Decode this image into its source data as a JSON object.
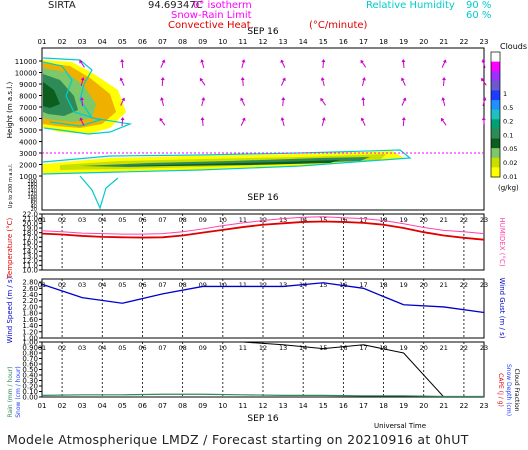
{
  "header": {
    "station": "SIRTA",
    "coords": "94.69347C",
    "legend_iso": "0° isotherm",
    "legend_snow": "Snow-Rain Limit",
    "legend_conv": "Convective Heat.",
    "legend_conv_unit": "(°C/minute)",
    "rh_label": "Relative Humidity",
    "rh_values": [
      "90 %",
      "60 %"
    ]
  },
  "x_ticks": [
    "01",
    "02",
    "03",
    "04",
    "05",
    "06",
    "07",
    "08",
    "09",
    "10",
    "11",
    "12",
    "13",
    "14",
    "15",
    "16",
    "17",
    "18",
    "19",
    "20",
    "21",
    "22",
    "23"
  ],
  "date_label": "SEP 16",
  "xlabel": "Universal Time",
  "footer": "Modele Atmospherique LMDZ / Forecast starting on 20210916 at 0hUT",
  "colors": {
    "temperature": "#e00000",
    "humidex": "#ff44aa",
    "wind": "#0000cc",
    "precip": "#000000",
    "isotherm": "#ff00ff",
    "cloud_light": "#ffff00",
    "cloud_dark": "#005500",
    "rh": "#00cccc"
  },
  "chart_data": [
    {
      "type": "heatmap",
      "ylabel": "Height (m a.s.l.)",
      "sub_ylabel": "Up to 200 m a.s.l.",
      "yticks_upper": [
        "11000",
        "10000",
        "9000",
        "8000",
        "7000",
        "6000",
        "5000",
        "4000",
        "3000",
        "2000",
        "1000"
      ],
      "yticks_lower": [
        "200",
        "180",
        "160",
        "140",
        "120",
        "100",
        "80",
        "60",
        "40",
        "20"
      ],
      "colorbar_title": "Clouds",
      "colorbar_ticks": [
        "1",
        "0.5",
        "0.2",
        "0.1",
        "0.05",
        "0.02",
        "0.01"
      ],
      "colorbar_unit": "(g/kg)",
      "isotherm_height": 3000
    },
    {
      "type": "line",
      "ylabel": "Temperature (°C)",
      "ylabel2": "HUMIDEX (°C)",
      "yticks": [
        "22.0",
        "21.0",
        "20.0",
        "19.0",
        "18.0",
        "17.0",
        "16.0",
        "15.0",
        "14.0",
        "13.0",
        "12.0",
        "11.0",
        "10.0"
      ],
      "ylim": [
        10,
        22
      ],
      "x": [
        1,
        2,
        3,
        4,
        5,
        6,
        7,
        8,
        9,
        10,
        11,
        12,
        13,
        14,
        15,
        16,
        17,
        18,
        19,
        20,
        21,
        22,
        23
      ],
      "series": [
        {
          "name": "Temperature",
          "values": [
            17.8,
            17.6,
            17.3,
            17.1,
            17.0,
            16.95,
            17.0,
            17.4,
            18.0,
            18.6,
            19.2,
            19.7,
            20.0,
            20.3,
            20.4,
            20.3,
            20.1,
            19.7,
            19.0,
            18.1,
            17.4,
            16.9,
            16.5
          ]
        },
        {
          "name": "HUMIDEX",
          "values": [
            18.4,
            18.2,
            17.9,
            17.8,
            17.7,
            17.7,
            17.8,
            18.2,
            18.8,
            19.5,
            20.1,
            20.6,
            21.0,
            21.3,
            21.4,
            21.2,
            21.0,
            20.6,
            19.9,
            19.1,
            18.5,
            18.2,
            17.8
          ]
        }
      ]
    },
    {
      "type": "line",
      "ylabel": "Wind Speed (m / s)",
      "ylabel2": "Wind Gust (m / s)",
      "yticks": [
        "2.80",
        "2.60",
        "2.40",
        "2.20",
        "2.00",
        "1.80",
        "1.60",
        "1.40",
        "1.20",
        "1.00"
      ],
      "ylim": [
        1.0,
        2.9
      ],
      "x": [
        1,
        3,
        5,
        7,
        9,
        11,
        13,
        15,
        17,
        19,
        21,
        23
      ],
      "series": [
        {
          "name": "Wind Speed",
          "values": [
            2.73,
            2.3,
            2.12,
            2.42,
            2.66,
            2.66,
            2.66,
            2.78,
            2.6,
            2.07,
            2.0,
            1.82
          ]
        }
      ]
    },
    {
      "type": "line",
      "ylabel": "Rain (mm / hour) Snow (cm / hour)",
      "ylabel2": "CAPE (J / g) Snow Depth (cm) Cloud Fraction",
      "yticks": [
        "1.00",
        "0.90",
        "0.80",
        "0.70",
        "0.60",
        "0.50",
        "0.40",
        "0.30",
        "0.20",
        "0.10",
        "0.00"
      ],
      "ylim": [
        0,
        1.0
      ],
      "x": [
        1,
        3,
        5,
        7,
        9,
        11,
        13,
        15,
        17,
        19,
        21,
        23
      ],
      "series": [
        {
          "name": "Cloud Fraction",
          "values": [
            1.0,
            1.0,
            1.0,
            1.0,
            1.0,
            1.0,
            0.95,
            0.88,
            0.95,
            0.8,
            0.0,
            0.0
          ]
        },
        {
          "name": "Rain",
          "values": [
            0.03,
            0.04,
            0.04,
            0.05,
            0.05,
            0.04,
            0.03,
            0.03,
            0.02,
            0.02,
            0.01,
            0.01
          ]
        }
      ]
    }
  ]
}
